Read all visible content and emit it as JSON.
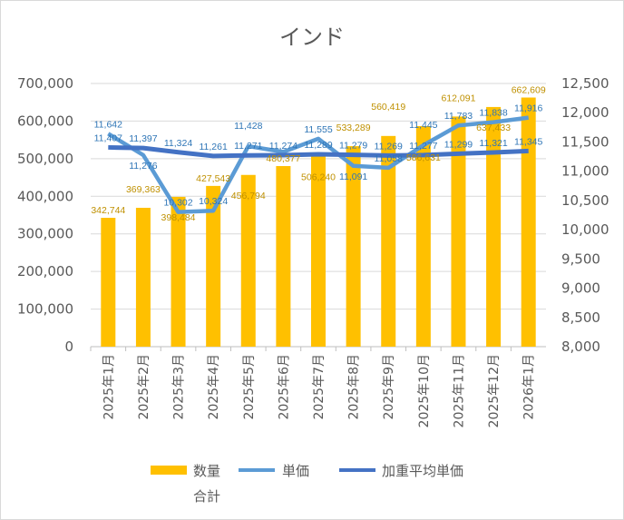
{
  "chart_data": {
    "type": "bar+line",
    "title": "インド",
    "categories": [
      "2025年1月",
      "2025年2月",
      "2025年3月",
      "2025年4月",
      "2025年5月",
      "2025年6月",
      "2025年7月",
      "2025年8月",
      "2025年9月",
      "2025年10月",
      "2025年11月",
      "2025年12月",
      "2026年1月"
    ],
    "left_axis": {
      "min": 0,
      "max": 700000,
      "step": 100000,
      "ticks": [
        "0",
        "100,000",
        "200,000",
        "300,000",
        "400,000",
        "500,000",
        "600,000",
        "700,000"
      ]
    },
    "right_axis": {
      "min": 8000,
      "max": 12500,
      "step": 500,
      "ticks": [
        "8,000",
        "8,500",
        "9,000",
        "9,500",
        "10,000",
        "10,500",
        "11,000",
        "11,500",
        "12,000",
        "12,500"
      ]
    },
    "series": [
      {
        "name": "数量合計",
        "type": "bar",
        "axis": "left",
        "color": "#ffc000",
        "values": [
          342744,
          369363,
          398484,
          427543,
          456794,
          480377,
          506240,
          533289,
          560419,
          586631,
          612091,
          637433,
          662609
        ],
        "labels": [
          "342,744",
          "369,363",
          "398,484",
          "427,543",
          "456,794",
          "480,377",
          "506,240",
          "533,289",
          "560,419",
          "586,631",
          "612,091",
          "637,433",
          "662,609"
        ]
      },
      {
        "name": "単価",
        "type": "line",
        "axis": "right",
        "color": "#5b9bd5",
        "values": [
          11642,
          11276,
          10302,
          10324,
          11428,
          11330,
          11555,
          11091,
          11058,
          11445,
          11783,
          11838,
          11916
        ],
        "labels": [
          "11,642",
          "11,276",
          "10,302",
          "10,324",
          "11,428",
          "",
          "11,555",
          "11,091",
          "11,058",
          "11,445",
          "11,783",
          "11,838",
          "11,916"
        ]
      },
      {
        "name": "加重平均単価",
        "type": "line",
        "axis": "right",
        "color": "#4472c4",
        "values": [
          11407,
          11397,
          11324,
          11261,
          11271,
          11274,
          11289,
          11279,
          11269,
          11277,
          11299,
          11321,
          11345
        ],
        "labels": [
          "11,407",
          "11,397",
          "11,324",
          "11,261",
          "11,271",
          "11,274",
          "11,289",
          "11,279",
          "11,269",
          "11,277",
          "11,299",
          "11,321",
          "11,345"
        ]
      }
    ],
    "legend": {
      "position": "bottom",
      "entries": [
        "数量",
        "合計",
        "単価",
        "加重平均単価"
      ]
    },
    "grid": true
  }
}
